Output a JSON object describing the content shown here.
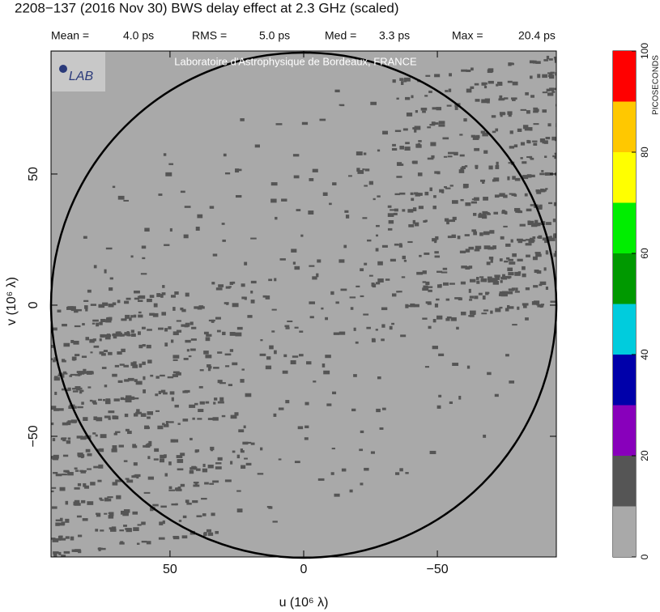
{
  "chart_data": {
    "type": "uv-map",
    "title": "2208−137  (2016 Nov 30)   BWS delay effect at  2.3 GHz (scaled)",
    "stats": [
      {
        "name": "Mean =",
        "text": "4.0 ps"
      },
      {
        "name": "RMS =",
        "text": "5.0 ps"
      },
      {
        "name": "Med =",
        "text": "3.3 ps"
      },
      {
        "name": "Max =",
        "text": "20.4 ps"
      }
    ],
    "logo": "LAB",
    "watermark": "Laboratoire d'Astrophysique de Bordeaux, FRANCE",
    "x_label": "u  (10⁶ λ)",
    "y_label": "v  (10⁶ λ)",
    "xlim": [
      94.5,
      -94.5
    ],
    "ylim": [
      -96,
      96.9
    ],
    "xticks": [
      50,
      0,
      {
        "value": -50,
        "label": "−50"
      }
    ],
    "yticks": [
      {
        "value": -50,
        "label": "−50"
      },
      0,
      50
    ],
    "background": "#a9a9a9",
    "speckle_color": "#555555",
    "colorbar": {
      "label": "PICOSECONDS",
      "lim": [
        0,
        100
      ],
      "ticks": [
        0,
        20,
        40,
        60,
        80,
        100
      ],
      "colors": [
        "#a9a9a9",
        "#555555",
        "#8800bb",
        "#0000aa",
        "#00ccdd",
        "#009900",
        "#00ee00",
        "#ffff00",
        "#ffc800",
        "#ff0000"
      ]
    }
  }
}
